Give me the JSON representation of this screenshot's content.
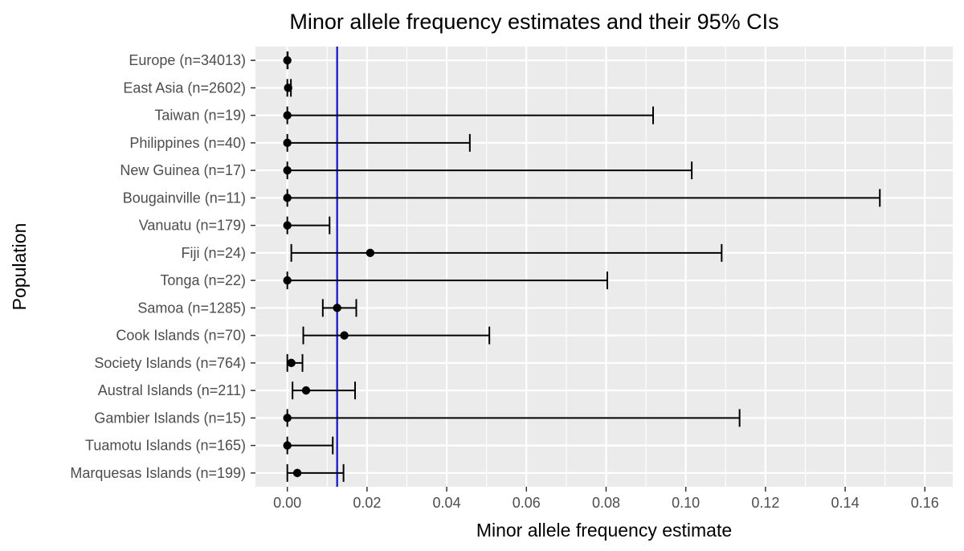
{
  "chart_data": {
    "type": "scatter",
    "subtype": "point-with-errorbars",
    "title": "Minor allele frequency estimates and their 95% CIs",
    "xlabel": "Minor allele frequency estimate",
    "ylabel": "Population",
    "xlim": [
      -0.008,
      0.167
    ],
    "xticks": [
      0.0,
      0.02,
      0.04,
      0.06,
      0.08,
      0.1,
      0.12,
      0.14,
      0.16
    ],
    "xtick_labels": [
      "0.00",
      "0.02",
      "0.04",
      "0.06",
      "0.08",
      "0.10",
      "0.12",
      "0.14",
      "0.16"
    ],
    "reference_line": {
      "value": 0.0125,
      "color": "#1f1fc8",
      "orientation": "vertical"
    },
    "categories": [
      "Europe  (n=34013)",
      "East Asia (n=2602)",
      "Taiwan (n=19)",
      "Philippines (n=40)",
      "New Guinea (n=17)",
      "Bougainville (n=11)",
      "Vanuatu (n=179)",
      "Fiji (n=24)",
      "Tonga (n=22)",
      "Samoa (n=1285)",
      "Cook Islands (n=70)",
      "Society Islands (n=764)",
      "Austral Islands (n=211)",
      "Gambier Islands (n=15)",
      "Tuamotu Islands (n=165)",
      "Marquesas Islands (n=199)"
    ],
    "series": [
      {
        "name": "estimate",
        "estimate": [
          0.0,
          0.0002,
          0.0,
          0.0,
          0.0,
          0.0,
          0.0,
          0.0208,
          0.0,
          0.0125,
          0.0143,
          0.001,
          0.0047,
          0.0,
          0.0,
          0.0025
        ],
        "lower": [
          0.0,
          0.0,
          0.0,
          0.0,
          0.0,
          0.0,
          0.0,
          0.001,
          0.0,
          0.0089,
          0.004,
          0.0,
          0.0013,
          0.0,
          0.0,
          0.0
        ],
        "upper": [
          0.0001,
          0.0009,
          0.0918,
          0.0458,
          0.1015,
          0.1487,
          0.0106,
          0.109,
          0.0803,
          0.0173,
          0.0507,
          0.0038,
          0.017,
          0.1135,
          0.0114,
          0.0141
        ]
      }
    ],
    "grid": true,
    "legend": "none"
  }
}
